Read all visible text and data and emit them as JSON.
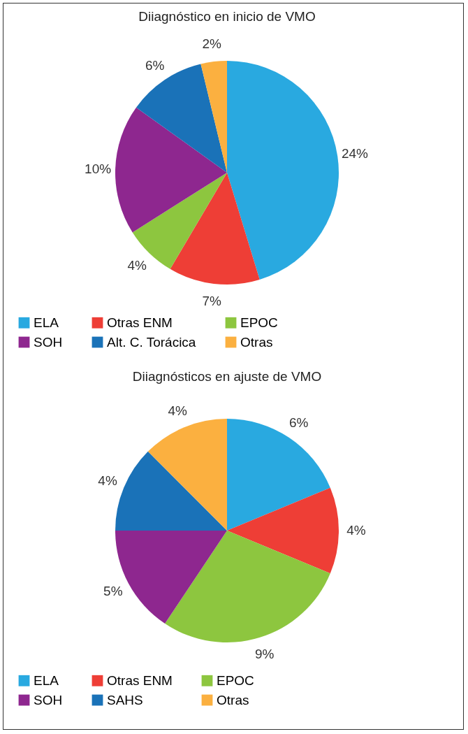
{
  "chart_data": [
    {
      "type": "pie",
      "title": "Diiagnóstico en inicio de VMO",
      "categories": [
        "ELA",
        "Otras ENM",
        "EPOC",
        "SOH",
        "Alt. C. Torácica",
        "Otras"
      ],
      "values": [
        24,
        7,
        4,
        10,
        6,
        2
      ],
      "value_labels": [
        "24%",
        "7%",
        "4%",
        "10%",
        "6%",
        "2%"
      ],
      "colors": [
        "#29a9e0",
        "#ee3e36",
        "#8dc63f",
        "#8e278f",
        "#1a72b8",
        "#fbb040"
      ],
      "legend": "bottom"
    },
    {
      "type": "pie",
      "title": "Diiagnósticos en ajuste de VMO",
      "categories": [
        "ELA",
        "Otras ENM",
        "EPOC",
        "SOH",
        "SAHS",
        "Otras"
      ],
      "values": [
        6,
        4,
        9,
        5,
        4,
        4
      ],
      "value_labels": [
        "6%",
        "4%",
        "9%",
        "5%",
        "4%",
        "4%"
      ],
      "colors": [
        "#29a9e0",
        "#ee3e36",
        "#8dc63f",
        "#8e278f",
        "#1a72b8",
        "#fbb040"
      ],
      "legend": "bottom"
    }
  ]
}
